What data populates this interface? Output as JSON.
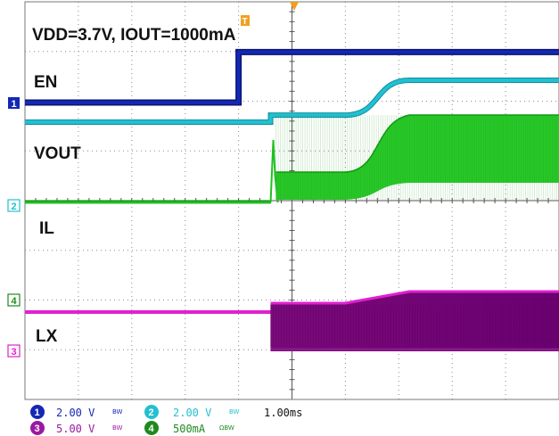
{
  "chart_data": {
    "type": "line",
    "title": "VDD=3.7V, IOUT=1000mA",
    "trace_labels": [
      "EN",
      "VOUT",
      "IL",
      "LX"
    ],
    "grid": true,
    "x": {
      "unit": "ms",
      "per_div": 1.0,
      "divisions": 10,
      "range": [
        -5,
        5
      ],
      "trigger_time": 0
    },
    "series": [
      {
        "name": "EN",
        "channel": "1",
        "color": "#1428b4",
        "unit": "V",
        "points": [
          [
            -5,
            0
          ],
          [
            -1.0,
            0
          ],
          [
            -1.0,
            3.7
          ],
          [
            5,
            3.7
          ]
        ]
      },
      {
        "name": "VOUT",
        "channel": "2",
        "color": "#22c0d0",
        "unit": "V",
        "points": [
          [
            -5,
            0
          ],
          [
            -0.4,
            0
          ],
          [
            -0.4,
            0.3
          ],
          [
            1.0,
            0.3
          ],
          [
            2.2,
            1.8
          ],
          [
            5,
            1.8
          ]
        ]
      },
      {
        "name": "IL",
        "channel": "4",
        "color": "#1fc01f",
        "unit": "mA",
        "switching": true,
        "points": [
          [
            -5,
            0
          ],
          [
            -0.4,
            0
          ],
          [
            -0.35,
            1600
          ],
          [
            -0.3,
            0
          ],
          [
            1.0,
            100
          ],
          [
            2.2,
            1000
          ],
          [
            5,
            1000
          ]
        ]
      },
      {
        "name": "LX",
        "channel": "3",
        "color": "#e020d0",
        "unit": "V",
        "switching": true,
        "points": [
          [
            -5,
            0
          ],
          [
            -0.4,
            0
          ],
          [
            -0.4,
            0.0
          ],
          [
            5,
            0.0
          ]
        ]
      }
    ]
  },
  "channels": [
    {
      "id": "1",
      "scale": "2.00 V",
      "color": "#1428b4",
      "coupling": "BW"
    },
    {
      "id": "2",
      "scale": "2.00 V",
      "color": "#22c0d0",
      "coupling": "BW"
    },
    {
      "id": "3",
      "scale": "5.00 V",
      "color": "#9a1aa0",
      "coupling": "BW"
    },
    {
      "id": "4",
      "scale": "500mA",
      "color": "#1e8a1e",
      "coupling": "ΩBW"
    }
  ],
  "timebase": "1.00ms",
  "trigger_marker": "T"
}
